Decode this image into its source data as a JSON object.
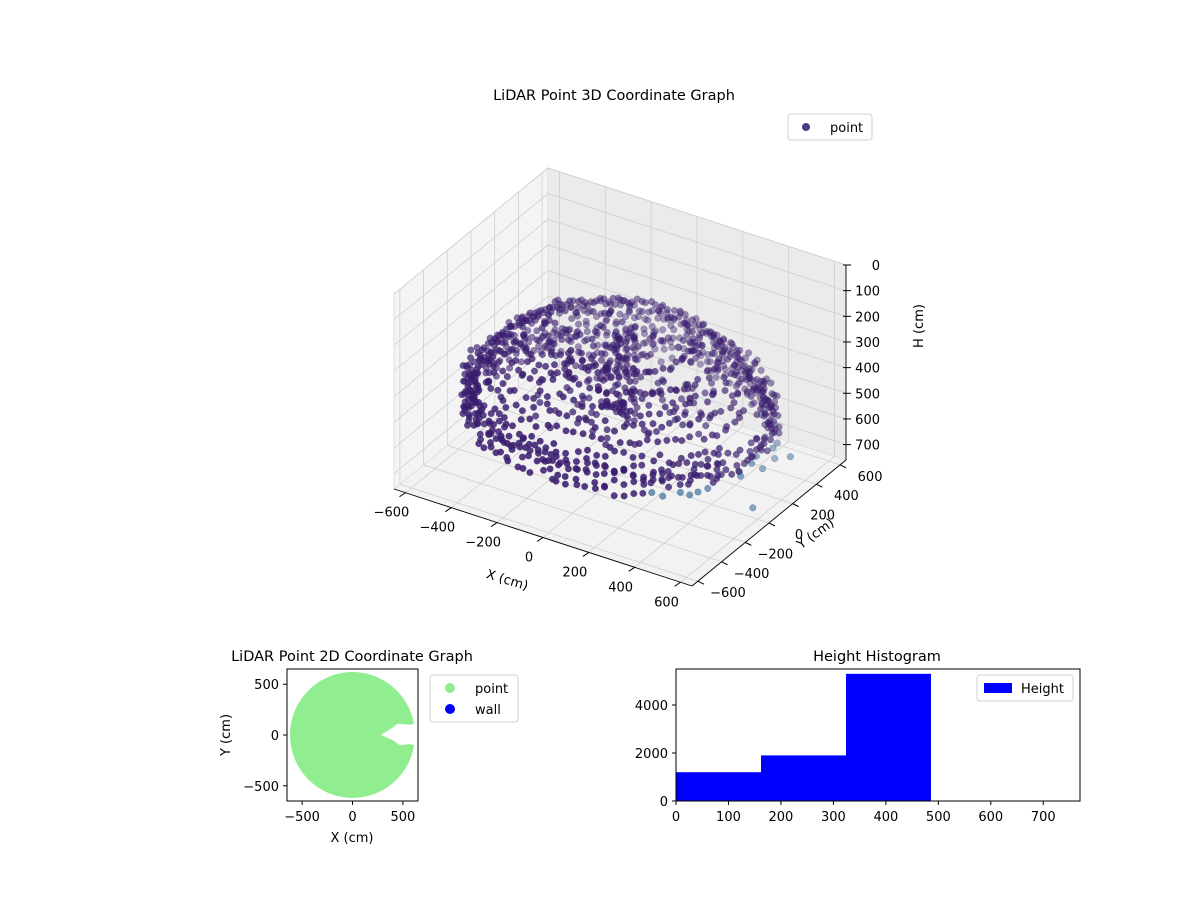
{
  "chart_data": [
    {
      "type": "scatter",
      "projection": "3d",
      "title": "LiDAR Point 3D Coordinate Graph",
      "xlabel": "X (cm)",
      "ylabel": "Y (cm)",
      "zlabel": "H (cm)",
      "xlim": [
        -650,
        650
      ],
      "ylim": [
        -650,
        650
      ],
      "zlim": [
        0,
        760
      ],
      "z_inverted": true,
      "xticks": [
        -600,
        -400,
        -200,
        0,
        200,
        400,
        600
      ],
      "yticks": [
        -600,
        -400,
        -200,
        0,
        200,
        400,
        600
      ],
      "zticks": [
        0,
        100,
        200,
        300,
        400,
        500,
        600,
        700
      ],
      "grid": true,
      "legend": {
        "position": "top-right",
        "entries": [
          "point"
        ]
      },
      "colors": {
        "point": "#483d8b",
        "marker_dark": "#3b1d70",
        "marker_light": "#4e7fa8"
      },
      "series": [
        {
          "name": "point",
          "description_rings": [
            {
              "radius": 600,
              "h": 420,
              "gap_angle_deg": [
                -20,
                20
              ]
            },
            {
              "radius": 600,
              "h": 480
            },
            {
              "radius": 550,
              "h": 380
            },
            {
              "radius": 500,
              "h": 340
            },
            {
              "radius": 450,
              "h": 300
            },
            {
              "radius": 400,
              "h": 260
            },
            {
              "radius": 300,
              "h": 220
            }
          ]
        }
      ]
    },
    {
      "type": "scatter",
      "title": "LiDAR Point 2D Coordinate Graph",
      "xlabel": "X (cm)",
      "ylabel": "Y (cm)",
      "xlim": [
        -650,
        650
      ],
      "ylim": [
        -650,
        650
      ],
      "xticks": [
        -500,
        0,
        500
      ],
      "yticks": [
        -500,
        0,
        500
      ],
      "legend": {
        "position": "right",
        "entries": [
          "point",
          "wall"
        ]
      },
      "colors": {
        "point": "#90ee90",
        "wall": "#0000ff"
      },
      "series": [
        {
          "name": "point",
          "shape": "filled disc, radius ≈ 620, notch on +X side around Y = 0"
        },
        {
          "name": "wall",
          "points": []
        }
      ]
    },
    {
      "type": "bar",
      "title": "Height Histogram",
      "xlabel": "",
      "ylabel": "",
      "xlim": [
        0,
        770
      ],
      "ylim": [
        0,
        5500
      ],
      "xticks": [
        0,
        100,
        200,
        300,
        400,
        500,
        600,
        700
      ],
      "yticks": [
        0,
        2000,
        4000
      ],
      "legend": {
        "position": "top-right",
        "entries": [
          "Height"
        ]
      },
      "colors": {
        "Height": "#0000ff"
      },
      "bins": [
        {
          "x0": 0,
          "x1": 162,
          "count": 1200
        },
        {
          "x0": 162,
          "x1": 324,
          "count": 1900
        },
        {
          "x0": 324,
          "x1": 486,
          "count": 5300
        }
      ],
      "series": [
        {
          "name": "Height"
        }
      ]
    }
  ]
}
